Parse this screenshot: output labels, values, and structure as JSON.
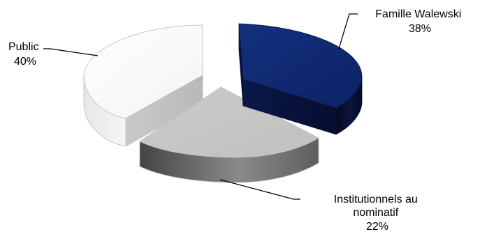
{
  "chart_data": {
    "type": "pie",
    "title": "",
    "style": "3d-exploded",
    "legend": "none",
    "slices": [
      {
        "category": "Famille Walewski",
        "value": 38,
        "label_lines": [
          "Famille Walewski"
        ],
        "value_label": "38%",
        "color": "#0f2a78"
      },
      {
        "category": "Institutionnels au nominatif",
        "value": 22,
        "label_lines": [
          "Institutionnels au",
          "nominatif"
        ],
        "value_label": "22%",
        "color": "#c8c8c8"
      },
      {
        "category": "Public",
        "value": 40,
        "label_lines": [
          "Public"
        ],
        "value_label": "40%",
        "color": "#ffffff"
      }
    ]
  }
}
